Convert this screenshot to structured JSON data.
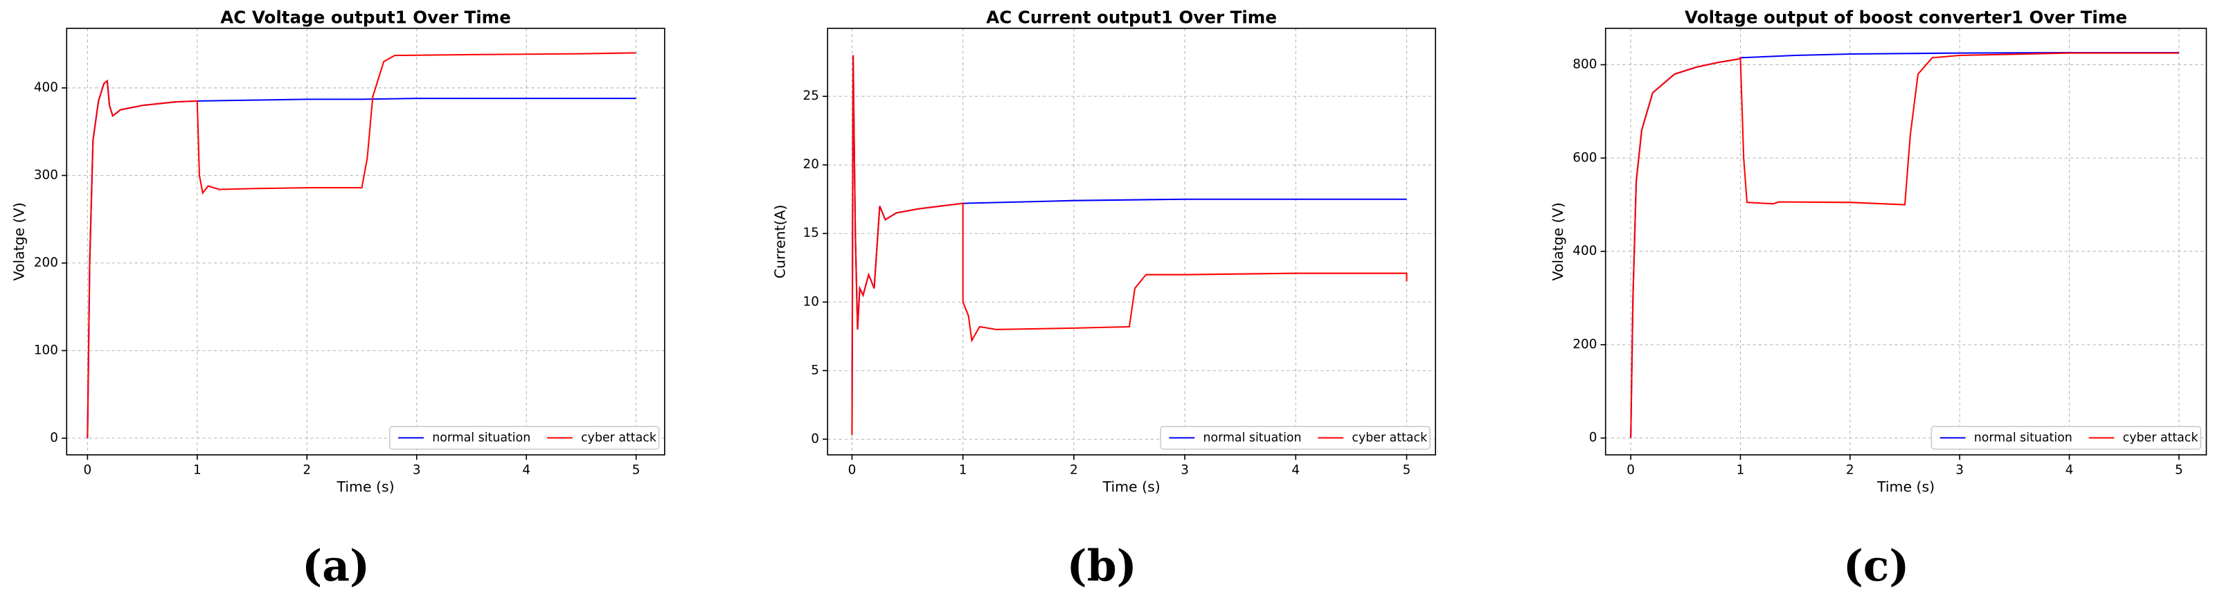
{
  "chart_data": [
    {
      "type": "line",
      "title": "AC Voltage output1  Over Time",
      "xlabel": "Time (s)",
      "ylabel": "Volatge (V)",
      "panel_label": "(a)",
      "xlim": [
        -0.19,
        5.26
      ],
      "ylim": [
        -19,
        468
      ],
      "xticks": [
        0,
        1,
        2,
        3,
        4,
        5
      ],
      "yticks": [
        0,
        100,
        200,
        300,
        400
      ],
      "grid": true,
      "legend": "lower right",
      "series": [
        {
          "name": "normal situation",
          "color": "#0000ff",
          "x": [
            0,
            0.02,
            0.05,
            0.1,
            0.15,
            0.18,
            0.2,
            0.23,
            0.3,
            0.5,
            0.8,
            1.0,
            1.5,
            2,
            2.5,
            3,
            3.5,
            4,
            4.5,
            5
          ],
          "values": [
            0,
            200,
            340,
            385,
            405,
            408,
            380,
            368,
            375,
            380,
            384,
            385,
            386,
            387,
            387,
            388,
            388,
            388,
            388,
            388
          ]
        },
        {
          "name": "cyber attack",
          "color": "#ff0000",
          "x": [
            0,
            0.02,
            0.05,
            0.1,
            0.15,
            0.18,
            0.2,
            0.23,
            0.3,
            0.5,
            0.8,
            1.0,
            1.02,
            1.05,
            1.1,
            1.2,
            1.5,
            2.0,
            2.5,
            2.55,
            2.6,
            2.7,
            2.8,
            3.5,
            4.5,
            5
          ],
          "values": [
            0,
            200,
            340,
            385,
            405,
            408,
            380,
            368,
            375,
            380,
            384,
            385,
            300,
            280,
            288,
            284,
            285,
            286,
            286,
            320,
            390,
            430,
            437,
            438,
            439,
            440
          ]
        }
      ]
    },
    {
      "type": "line",
      "title": "AC Current output1 Over Time",
      "xlabel": "Time (s)",
      "ylabel": "Current(A)",
      "panel_label": "(b)",
      "xlim": [
        -0.22,
        5.26
      ],
      "ylim": [
        -1.14,
        29.96
      ],
      "xticks": [
        0,
        1,
        2,
        3,
        4,
        5
      ],
      "yticks": [
        0,
        5,
        10,
        15,
        20,
        25
      ],
      "grid": true,
      "legend": "lower right",
      "series": [
        {
          "name": "normal situation",
          "color": "#0000ff",
          "x": [
            0,
            0.01,
            0.03,
            0.05,
            0.07,
            0.1,
            0.15,
            0.2,
            0.25,
            0.3,
            0.4,
            0.6,
            0.8,
            1.0,
            2,
            3,
            4,
            5
          ],
          "values": [
            0.3,
            28,
            15,
            8,
            11,
            10.5,
            12,
            11,
            17,
            16,
            16.5,
            16.8,
            17,
            17.2,
            17.4,
            17.5,
            17.5,
            17.5
          ]
        },
        {
          "name": "cyber attack",
          "color": "#ff0000",
          "x": [
            0,
            0.01,
            0.03,
            0.05,
            0.07,
            0.1,
            0.15,
            0.2,
            0.25,
            0.3,
            0.4,
            0.6,
            0.8,
            1.0,
            1.0,
            1.05,
            1.08,
            1.15,
            1.3,
            2,
            2.5,
            2.55,
            2.65,
            3,
            4,
            5,
            5
          ],
          "values": [
            0.3,
            28,
            15,
            8,
            11,
            10.5,
            12,
            11,
            17,
            16,
            16.5,
            16.8,
            17,
            17.2,
            10,
            9,
            7.2,
            8.2,
            8,
            8.1,
            8.2,
            11,
            12,
            12,
            12.1,
            12.1,
            11.5
          ]
        }
      ]
    },
    {
      "type": "line",
      "title": "Voltage output of boost converter1 Over Time",
      "xlabel": "Time (s)",
      "ylabel": "Volatge (V)",
      "panel_label": "(c)",
      "xlim": [
        -0.23,
        5.25
      ],
      "ylim": [
        -36,
        878
      ],
      "xticks": [
        0,
        1,
        2,
        3,
        4,
        5
      ],
      "yticks": [
        0,
        200,
        400,
        600,
        800
      ],
      "grid": true,
      "legend": "lower right",
      "series": [
        {
          "name": "normal situation",
          "color": "#0000ff",
          "x": [
            0,
            0.02,
            0.05,
            0.1,
            0.2,
            0.4,
            0.6,
            0.8,
            0.98,
            1.0,
            1.5,
            2,
            3,
            4,
            5
          ],
          "values": [
            0,
            300,
            550,
            660,
            740,
            780,
            795,
            805,
            812,
            815,
            820,
            823,
            825,
            826,
            826
          ]
        },
        {
          "name": "cyber attack",
          "color": "#ff0000",
          "x": [
            0,
            0.02,
            0.05,
            0.1,
            0.2,
            0.4,
            0.6,
            0.8,
            0.98,
            1.0,
            1.03,
            1.06,
            1.3,
            1.35,
            2.0,
            2.5,
            2.55,
            2.62,
            2.75,
            3.0,
            4,
            5
          ],
          "values": [
            0,
            300,
            550,
            660,
            740,
            780,
            795,
            805,
            812,
            815,
            600,
            505,
            502,
            506,
            505,
            500,
            650,
            780,
            815,
            820,
            825,
            825
          ]
        }
      ]
    }
  ]
}
